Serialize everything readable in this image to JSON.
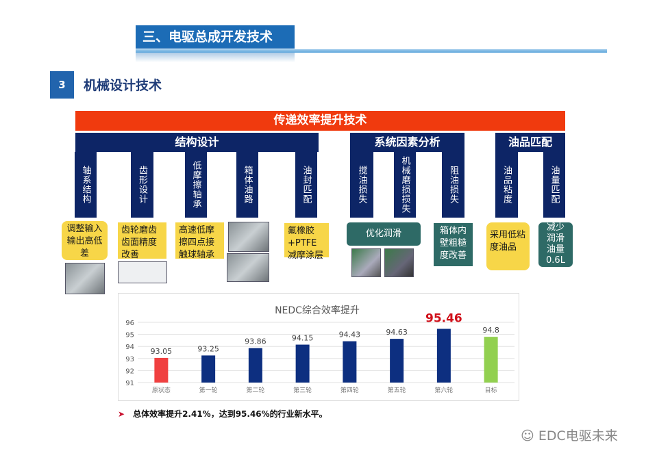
{
  "header": {
    "section_title": "三、电驱总成开发技术",
    "number": "3",
    "subtitle": "机械设计技术"
  },
  "banner": "传递效率提升技术",
  "groups": [
    {
      "title": "结构设计",
      "items": [
        "轴系结构",
        "齿形设计",
        "低摩擦轴承",
        "箱体油路",
        "油封匹配"
      ]
    },
    {
      "title": "系统因素分析",
      "items": [
        "搅油损失",
        "机械磨损损失",
        "阻油损失"
      ]
    },
    {
      "title": "油品匹配",
      "items": [
        "油品粘度",
        "油量匹配"
      ]
    }
  ],
  "notes": {
    "shaft": "调整输入输出高低差",
    "gear": "齿轮磨齿齿面精度改善",
    "bearing": "高速低摩擦四点接触球轴承",
    "seal": "氟橡胶+PTFE减摩涂层",
    "lube": "优化润滑",
    "housing": "箱体内壁粗糙度改善",
    "viscosity": "采用低粘度油品",
    "oil_amount": "减少润滑油量0.6L"
  },
  "colors": {
    "banner": "#f03a0e",
    "navy": "#0d2566",
    "yellow": "#f7d648",
    "teal": "#2e6a66",
    "bar_base": "#f04040",
    "bar_round": "#0d2f80",
    "bar_target": "#92d050",
    "highlight": "#d0101a"
  },
  "chart_data": {
    "type": "bar",
    "title": "NEDC综合效率提升",
    "categories": [
      "原状态",
      "第一轮",
      "第二轮",
      "第三轮",
      "第四轮",
      "第五轮",
      "第六轮",
      "目标"
    ],
    "values": [
      93.05,
      93.25,
      93.86,
      94.15,
      94.43,
      94.63,
      95.46,
      94.8
    ],
    "data_labels": [
      "93.05",
      "93.25",
      "93.86",
      "94.15",
      "94.43",
      "94.63",
      "95.46",
      "94.8"
    ],
    "highlight_index": 6,
    "ylim": [
      91,
      96
    ],
    "yticks": [
      "91",
      "92",
      "93",
      "94",
      "95",
      "96"
    ],
    "grid": true
  },
  "bullet": "总体效率提升2.41%，达到95.46%的行业新水平。",
  "watermark": "EDC电驱未来"
}
